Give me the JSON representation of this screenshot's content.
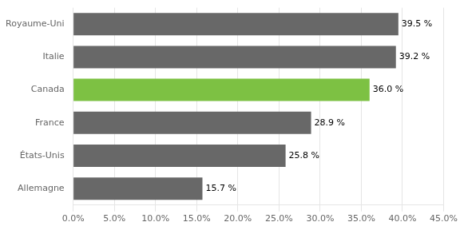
{
  "chart_data": {
    "type": "bar",
    "orientation": "horizontal",
    "categories": [
      "Allemagne",
      "États-Unis",
      "France",
      "Canada",
      "Italie",
      "Royaume-Uni"
    ],
    "values": [
      15.7,
      25.8,
      28.9,
      36.0,
      39.2,
      39.5
    ],
    "value_labels": [
      "15.7 %",
      "25.8 %",
      "28.9 %",
      "36.0 %",
      "39.2 %",
      "39.5 %"
    ],
    "colors": [
      "#686868",
      "#686868",
      "#686868",
      "#7DC143",
      "#686868",
      "#686868"
    ],
    "xlim": [
      0,
      45
    ],
    "xticks": [
      {
        "value": 0,
        "label": "0.0%"
      },
      {
        "value": 5,
        "label": "5.0%"
      },
      {
        "value": 10,
        "label": "10.0%"
      },
      {
        "value": 15,
        "label": "15.0%"
      },
      {
        "value": 20,
        "label": "20.0%"
      },
      {
        "value": 25,
        "label": "25.0%"
      },
      {
        "value": 30,
        "label": "30.0%"
      },
      {
        "value": 35,
        "label": "35.0%"
      },
      {
        "value": 40,
        "label": "40.0%"
      },
      {
        "value": 45,
        "label": "45.0%"
      }
    ],
    "grid": true,
    "data_labels": true
  }
}
